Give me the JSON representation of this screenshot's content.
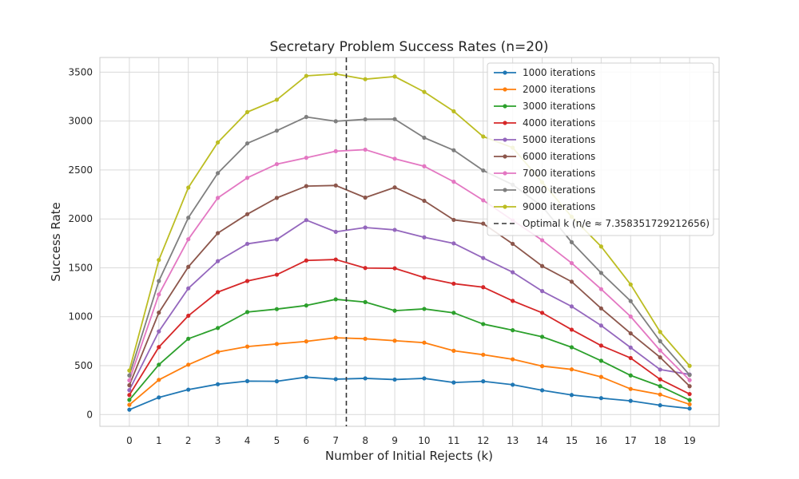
{
  "chart_data": {
    "type": "line",
    "title": "Secretary Problem Success Rates (n=20)",
    "xlabel": "Number of Initial Rejects (k)",
    "ylabel": "Success Rate",
    "x": [
      0,
      1,
      2,
      3,
      4,
      5,
      6,
      7,
      8,
      9,
      10,
      11,
      12,
      13,
      14,
      15,
      16,
      17,
      18,
      19
    ],
    "xlim": [
      -1,
      20
    ],
    "ylim": [
      -120,
      3650
    ],
    "yticks": [
      0,
      500,
      1000,
      1500,
      2000,
      2500,
      3000,
      3500
    ],
    "grid": true,
    "legend_position": "top-right",
    "series": [
      {
        "name": "1000 iterations",
        "color": "#1f77b4",
        "values": [
          50,
          175,
          255,
          310,
          342,
          340,
          383,
          362,
          370,
          358,
          370,
          328,
          340,
          305,
          248,
          200,
          168,
          140,
          95,
          62
        ]
      },
      {
        "name": "2000 iterations",
        "color": "#ff7f0e",
        "values": [
          100,
          355,
          510,
          640,
          695,
          722,
          748,
          785,
          775,
          755,
          735,
          652,
          612,
          565,
          495,
          462,
          385,
          262,
          205,
          105
        ]
      },
      {
        "name": "3000 iterations",
        "color": "#2ca02c",
        "values": [
          150,
          510,
          775,
          885,
          1048,
          1078,
          1115,
          1178,
          1150,
          1062,
          1080,
          1040,
          925,
          862,
          795,
          688,
          550,
          400,
          290,
          148
        ]
      },
      {
        "name": "4000 iterations",
        "color": "#d62728",
        "values": [
          200,
          690,
          1010,
          1252,
          1365,
          1430,
          1575,
          1585,
          1498,
          1495,
          1400,
          1338,
          1302,
          1162,
          1040,
          868,
          705,
          578,
          360,
          210
        ]
      },
      {
        "name": "5000 iterations",
        "color": "#9467bd",
        "values": [
          250,
          850,
          1290,
          1568,
          1745,
          1790,
          1988,
          1868,
          1912,
          1888,
          1812,
          1750,
          1600,
          1455,
          1262,
          1105,
          910,
          685,
          460,
          410
        ]
      },
      {
        "name": "6000 iterations",
        "color": "#8c564b",
        "values": [
          300,
          1042,
          1510,
          1855,
          2048,
          2215,
          2335,
          2342,
          2218,
          2322,
          2185,
          1990,
          1952,
          1745,
          1518,
          1358,
          1085,
          830,
          585,
          290
        ]
      },
      {
        "name": "7000 iterations",
        "color": "#e377c2",
        "values": [
          350,
          1228,
          1792,
          2215,
          2420,
          2560,
          2625,
          2692,
          2708,
          2615,
          2538,
          2380,
          2190,
          1985,
          1782,
          1548,
          1282,
          1002,
          655,
          352
        ]
      },
      {
        "name": "8000 iterations",
        "color": "#7f7f7f",
        "values": [
          400,
          1365,
          2012,
          2468,
          2772,
          2902,
          3042,
          2998,
          3018,
          3020,
          2830,
          2702,
          2495,
          2350,
          2128,
          1762,
          1448,
          1160,
          750,
          405
        ]
      },
      {
        "name": "9000 iterations",
        "color": "#bcbd22",
        "values": [
          450,
          1580,
          2320,
          2782,
          3092,
          3218,
          3462,
          3482,
          3428,
          3455,
          3298,
          3100,
          2842,
          2728,
          2375,
          2022,
          1718,
          1330,
          845,
          498
        ]
      }
    ],
    "vline": {
      "x": 7.358351729212656,
      "label": "Optimal k (n/e ≈ 7.358351729212656)",
      "color": "#333333"
    }
  }
}
